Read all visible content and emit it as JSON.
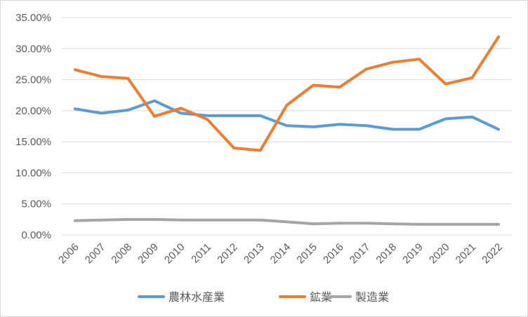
{
  "chart_data": {
    "type": "line",
    "title": "",
    "xlabel": "",
    "ylabel": "",
    "x": [
      "2006",
      "2007",
      "2008",
      "2009",
      "2010",
      "2011",
      "2012",
      "2013",
      "2014",
      "2015",
      "2016",
      "2017",
      "2018",
      "2019",
      "2020",
      "2021",
      "2022"
    ],
    "ylim": [
      0,
      35
    ],
    "yticks": [
      "0.00%",
      "5.00%",
      "10.00%",
      "15.00%",
      "20.00%",
      "25.00%",
      "30.00%",
      "35.00%"
    ],
    "grid": true,
    "legend_position": "bottom",
    "series": [
      {
        "name": "農林水産業",
        "color": "#5b9bd5",
        "values": [
          20.3,
          19.6,
          20.1,
          21.6,
          19.6,
          19.2,
          19.2,
          19.2,
          17.6,
          17.4,
          17.8,
          17.6,
          17.0,
          17.0,
          18.7,
          19.0,
          17.0
        ]
      },
      {
        "name": "鉱業",
        "color": "#ed7d31",
        "values": [
          26.6,
          25.5,
          25.2,
          19.1,
          20.4,
          18.6,
          14.0,
          13.6,
          20.9,
          24.1,
          23.8,
          26.7,
          27.8,
          28.3,
          24.3,
          25.3,
          31.9
        ]
      },
      {
        "name": "製造業",
        "color": "#a5a5a5",
        "values": [
          2.3,
          2.4,
          2.5,
          2.5,
          2.4,
          2.4,
          2.4,
          2.4,
          2.1,
          1.8,
          1.9,
          1.9,
          1.8,
          1.7,
          1.7,
          1.7,
          1.7
        ]
      }
    ]
  }
}
